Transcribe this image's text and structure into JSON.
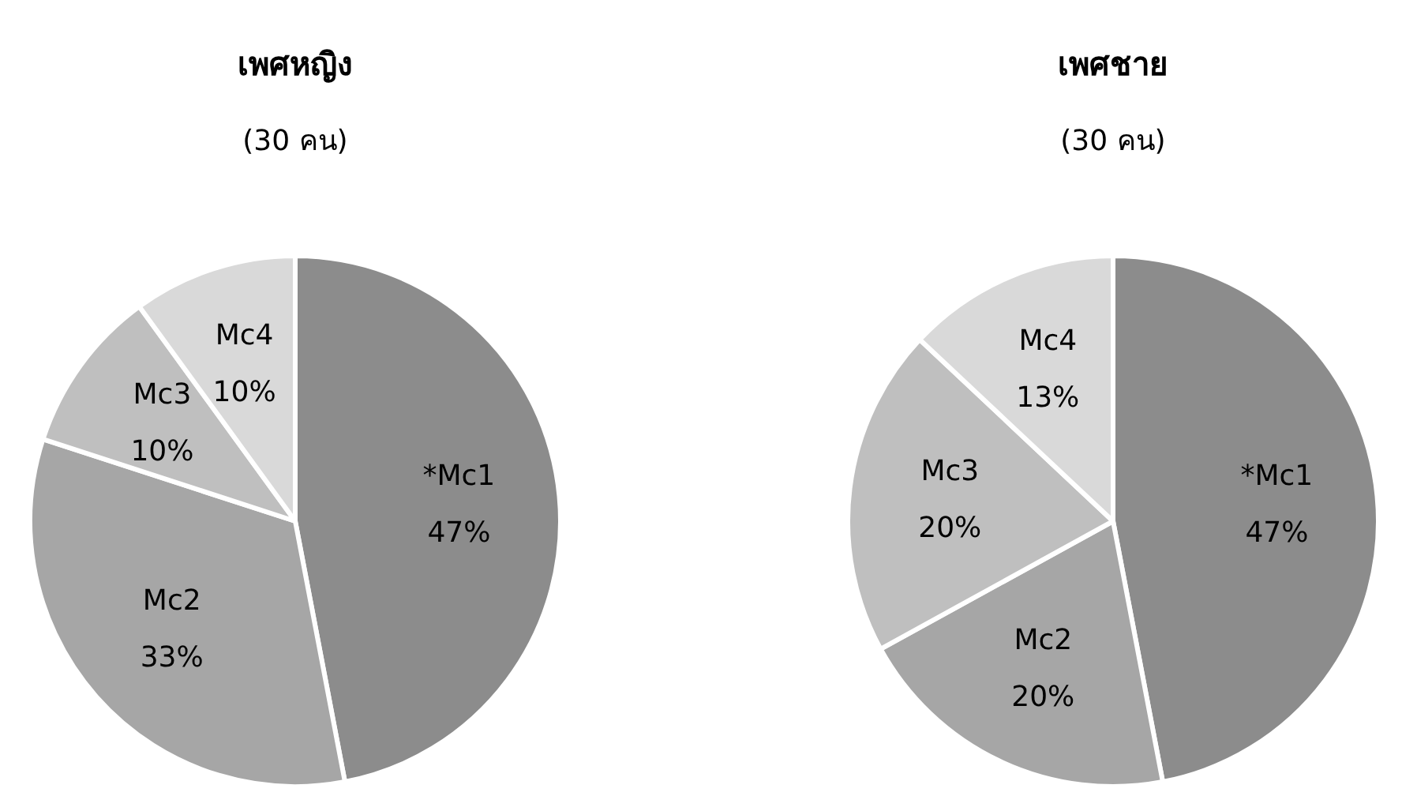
{
  "chart_data": [
    {
      "type": "pie",
      "title": "เพศหญิง",
      "subtitle": "(30 คน)",
      "categories": [
        "*Mc1",
        "Mc2",
        "Mc3",
        "Mc4"
      ],
      "values": [
        47,
        33,
        10,
        10
      ],
      "value_labels": [
        "47%",
        "33%",
        "10%",
        "10%"
      ],
      "colors": [
        "#8c8c8c",
        "#a6a6a6",
        "#bfbfbf",
        "#d9d9d9"
      ]
    },
    {
      "type": "pie",
      "title": "เพศชาย",
      "subtitle": "(30 คน)",
      "categories": [
        "*Mc1",
        "Mc2",
        "Mc3",
        "Mc4"
      ],
      "values": [
        47,
        20,
        20,
        13
      ],
      "value_labels": [
        "47%",
        "20%",
        "20%",
        "13%"
      ],
      "colors": [
        "#8c8c8c",
        "#a6a6a6",
        "#bfbfbf",
        "#d9d9d9"
      ]
    }
  ]
}
